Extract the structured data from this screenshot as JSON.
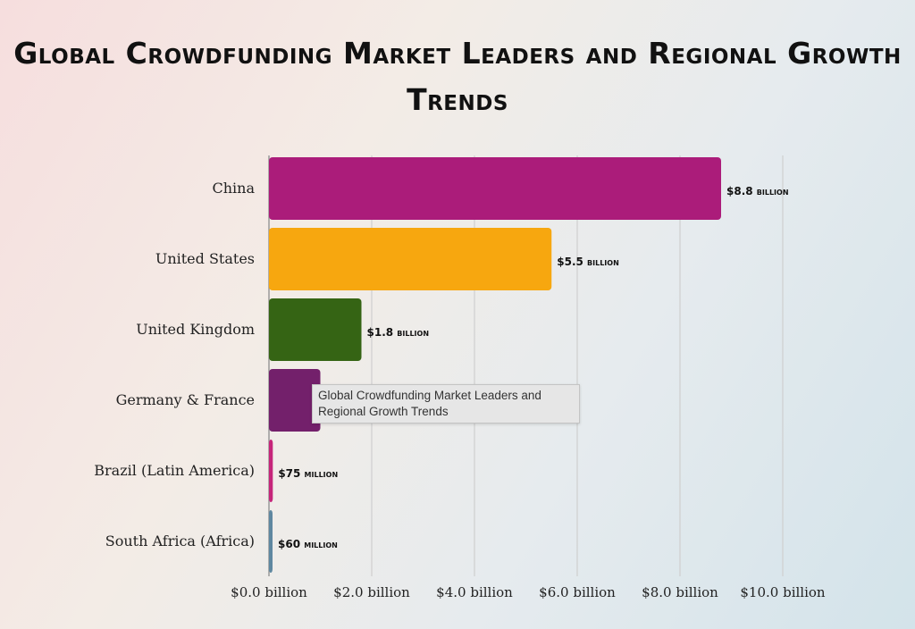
{
  "chart_data": {
    "type": "bar",
    "orientation": "horizontal",
    "title": "Global Crowdfunding Market Leaders and Regional Growth Trends",
    "categories": [
      "China",
      "United States",
      "United Kingdom",
      "Germany & France",
      "Brazil (Latin America)",
      "South Africa (Africa)"
    ],
    "values_billion": [
      8.8,
      5.5,
      1.8,
      1.0,
      0.075,
      0.06
    ],
    "data_labels": [
      "$8.8 billion",
      "$5.5 billion",
      "$1.8 billion",
      null,
      "$75 million",
      "$60 million"
    ],
    "colors": [
      "#ab1c7a",
      "#f7a70f",
      "#356414",
      "#73206b",
      "#c6257a",
      "#5e87a0"
    ],
    "xlim": [
      0,
      10
    ],
    "xticks": [
      0,
      2,
      4,
      6,
      8,
      10
    ],
    "xtick_labels": [
      "$0.0 billion",
      "$2.0 billion",
      "$4.0 billion",
      "$6.0 billion",
      "$8.0 billion",
      "$10.0 billion"
    ],
    "xlabel": "",
    "ylabel": "",
    "grid": "vertical",
    "legend": "none"
  },
  "tooltip": {
    "text": "Global Crowdfunding Market Leaders and Regional Growth Trends"
  }
}
